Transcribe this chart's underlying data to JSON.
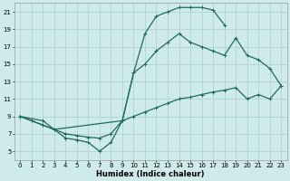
{
  "xlabel": "Humidex (Indice chaleur)",
  "bg_color": "#ceeaea",
  "line_color": "#1f6b5e",
  "grid_color": "#aed4d4",
  "xlim": [
    -0.5,
    23.5
  ],
  "ylim": [
    4,
    22
  ],
  "xticks": [
    0,
    1,
    2,
    3,
    4,
    5,
    6,
    7,
    8,
    9,
    10,
    11,
    12,
    13,
    14,
    15,
    16,
    17,
    18,
    19,
    20,
    21,
    22,
    23
  ],
  "yticks": [
    5,
    7,
    9,
    11,
    13,
    15,
    17,
    19,
    21
  ],
  "line1_x": [
    0,
    1,
    2,
    3,
    4,
    5,
    6,
    7,
    8,
    9,
    10,
    11,
    12,
    13,
    14,
    15,
    16,
    17,
    18
  ],
  "line1_y": [
    9.0,
    8.5,
    8.0,
    7.5,
    6.5,
    6.3,
    6.0,
    5.0,
    6.0,
    8.5,
    14.0,
    18.5,
    20.5,
    21.0,
    21.5,
    21.5,
    21.5,
    21.2,
    19.5
  ],
  "line2_x": [
    0,
    2,
    3,
    9,
    10,
    11,
    12,
    13,
    14,
    15,
    16,
    17,
    18,
    19,
    20,
    21,
    22,
    23
  ],
  "line2_y": [
    9.0,
    8.5,
    7.5,
    8.5,
    14.0,
    15.0,
    16.5,
    17.5,
    18.5,
    17.5,
    17.0,
    16.5,
    16.0,
    18.0,
    16.0,
    15.5,
    14.5,
    12.5
  ],
  "line3_x": [
    0,
    1,
    2,
    3,
    4,
    5,
    6,
    7,
    8,
    9,
    10,
    11,
    12,
    13,
    14,
    15,
    16,
    17,
    18,
    19,
    20,
    21,
    22,
    23
  ],
  "line3_y": [
    9.0,
    8.5,
    8.0,
    7.5,
    7.0,
    6.8,
    6.6,
    6.5,
    7.0,
    8.5,
    9.0,
    9.5,
    10.0,
    10.5,
    11.0,
    11.2,
    11.5,
    11.8,
    12.0,
    12.3,
    11.0,
    11.5,
    11.0,
    12.5
  ]
}
